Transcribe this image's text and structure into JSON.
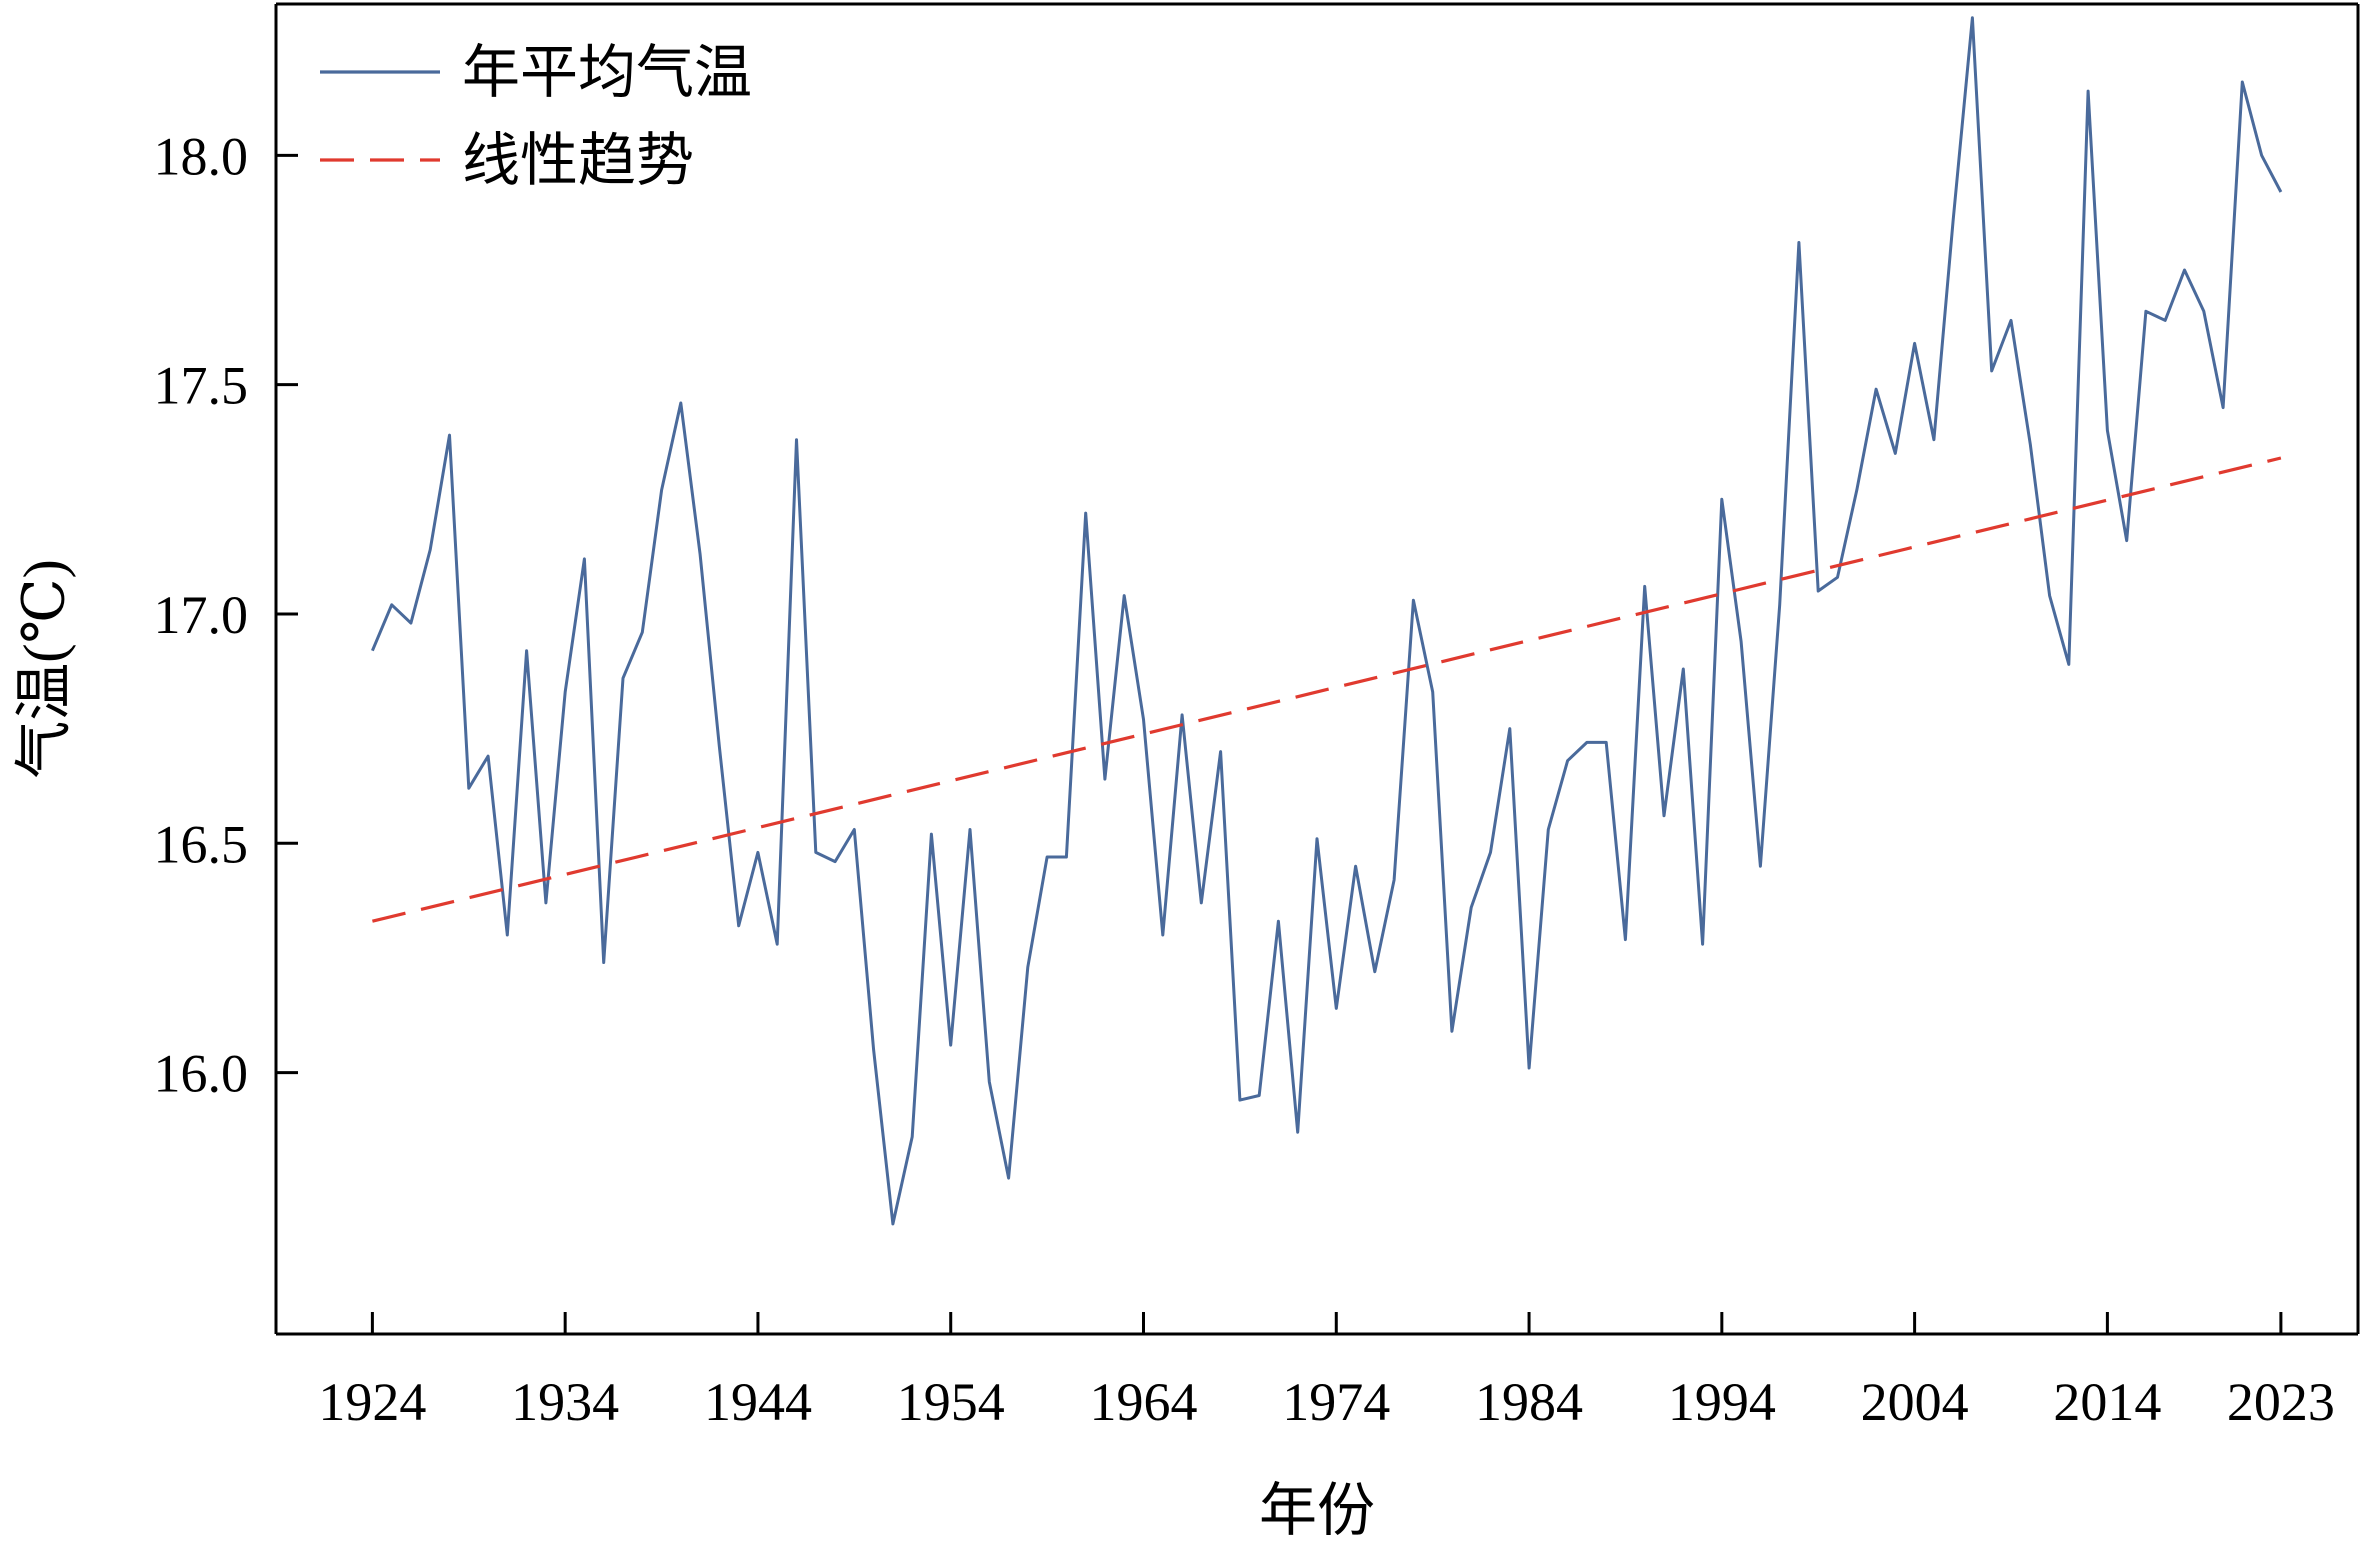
{
  "colors": {
    "series": "#4a6a9b",
    "trend": "#e03a2f",
    "axis": "#000000"
  },
  "chart_data": {
    "type": "line",
    "xlabel": "年份",
    "ylabel": "气温(℃)",
    "xlim": [
      1919,
      2027
    ],
    "ylim": [
      15.43,
      18.33
    ],
    "x_ticks": [
      1924,
      1934,
      1944,
      1954,
      1964,
      1974,
      1984,
      1994,
      2004,
      2014,
      2023
    ],
    "y_ticks": [
      16.0,
      16.5,
      17.0,
      17.5,
      18.0
    ],
    "y_tick_labels": [
      "16.0",
      "16.5",
      "17.0",
      "17.5",
      "18.0"
    ],
    "legend": {
      "placement": "top-left"
    },
    "grid": false,
    "series": [
      {
        "name": "年平均气温",
        "style": "solid",
        "color": "#4a6a9b",
        "x": [
          1924,
          1925,
          1926,
          1927,
          1928,
          1929,
          1930,
          1931,
          1932,
          1933,
          1934,
          1935,
          1936,
          1937,
          1938,
          1939,
          1940,
          1941,
          1942,
          1943,
          1944,
          1945,
          1946,
          1947,
          1948,
          1949,
          1950,
          1951,
          1952,
          1953,
          1954,
          1955,
          1956,
          1957,
          1958,
          1959,
          1960,
          1961,
          1962,
          1963,
          1964,
          1965,
          1966,
          1967,
          1968,
          1969,
          1970,
          1971,
          1972,
          1973,
          1974,
          1975,
          1976,
          1977,
          1978,
          1979,
          1980,
          1981,
          1982,
          1983,
          1984,
          1985,
          1986,
          1987,
          1988,
          1989,
          1990,
          1991,
          1992,
          1993,
          1994,
          1995,
          1996,
          1997,
          1998,
          1999,
          2000,
          2001,
          2002,
          2003,
          2004,
          2005,
          2006,
          2007,
          2008,
          2009,
          2010,
          2011,
          2012,
          2013,
          2014,
          2015,
          2016,
          2017,
          2018,
          2019,
          2020,
          2021,
          2022,
          2023
        ],
        "values": [
          16.92,
          17.02,
          16.98,
          17.14,
          17.39,
          16.62,
          16.69,
          16.3,
          16.92,
          16.37,
          16.83,
          17.12,
          16.24,
          16.86,
          16.96,
          17.27,
          17.46,
          17.13,
          16.71,
          16.32,
          16.48,
          16.28,
          17.38,
          16.48,
          16.46,
          16.53,
          16.05,
          15.67,
          15.86,
          16.52,
          16.06,
          16.53,
          15.98,
          15.77,
          16.23,
          16.47,
          16.47,
          17.22,
          16.64,
          17.04,
          16.77,
          16.3,
          16.78,
          16.37,
          16.7,
          15.94,
          15.95,
          16.33,
          15.87,
          16.51,
          16.14,
          16.45,
          16.22,
          16.42,
          17.03,
          16.83,
          16.09,
          16.36,
          16.48,
          16.75,
          16.01,
          16.53,
          16.68,
          16.72,
          16.72,
          16.29,
          17.06,
          16.56,
          16.88,
          16.28,
          17.25,
          16.94,
          16.45,
          17.02,
          17.81,
          17.05,
          17.08,
          17.27,
          17.49,
          17.35,
          17.59,
          17.38,
          17.86,
          18.3,
          17.53,
          17.64,
          17.37,
          17.04,
          16.89,
          18.14,
          17.4,
          17.16,
          17.66,
          17.64,
          17.75,
          17.66,
          17.45,
          18.16,
          18.0,
          17.92
        ]
      },
      {
        "name": "线性趋势",
        "style": "dashed",
        "color": "#e03a2f",
        "x": [
          1924,
          2023
        ],
        "values": [
          16.33,
          17.34
        ]
      }
    ]
  }
}
